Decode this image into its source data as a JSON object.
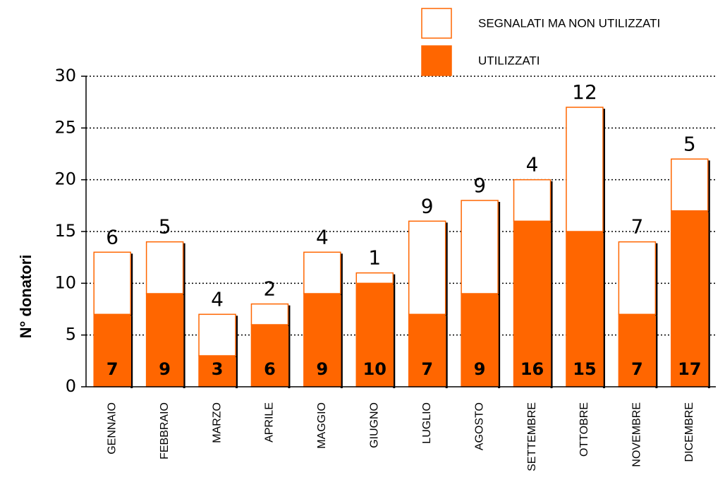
{
  "chart_data": {
    "type": "stacked_bar",
    "y_label": "N° donatori",
    "categories": [
      "GENNAIO",
      "FEBBRAIO",
      "MARZO",
      "APRILE",
      "MAGGIO",
      "GIUGNO",
      "LUGLIO",
      "AGOSTO",
      "SETTEMBRE",
      "OTTOBRE",
      "NOVEMBRE",
      "DICEMBRE"
    ],
    "series": [
      {
        "name": "UTILIZZATI",
        "color": "#ff6600",
        "values": [
          7,
          9,
          3,
          6,
          9,
          10,
          7,
          9,
          16,
          15,
          7,
          17
        ]
      },
      {
        "name": "SEGNALATI MA NON UTILIZZATI",
        "color": "#ffffff",
        "values": [
          6,
          5,
          4,
          2,
          4,
          1,
          9,
          9,
          4,
          12,
          7,
          5
        ]
      }
    ],
    "ylim": [
      0,
      30
    ],
    "yticks": [
      0,
      5,
      10,
      15,
      20,
      25,
      30
    ],
    "grid": true
  }
}
